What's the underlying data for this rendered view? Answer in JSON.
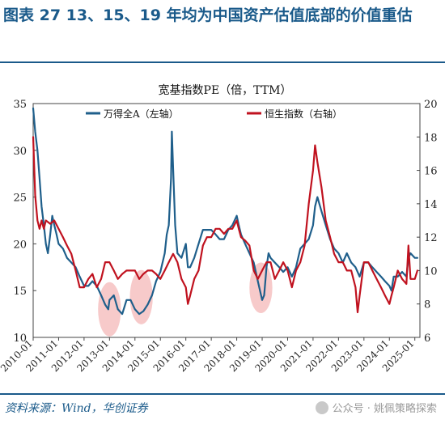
{
  "header": {
    "title": "图表 27    13、15、19 年均为中国资产估值底部的价值重估"
  },
  "footer": {
    "source": "资料来源：Wind，华创证券",
    "watermark": "公众号 · 姚佩策略探索"
  },
  "chart_data": {
    "type": "line",
    "title": "宽基指数PE（倍，TTM）",
    "x_ticks": [
      "2010-01",
      "2011-01",
      "2012-01",
      "2013-01",
      "2014-01",
      "2015-01",
      "2016-01",
      "2017-01",
      "2018-01",
      "2019-01",
      "2020-01",
      "2021-01",
      "2022-01",
      "2023-01",
      "2024-01",
      "2025-01"
    ],
    "y_left": {
      "range": [
        10,
        35
      ],
      "ticks": [
        "10",
        "15",
        "20",
        "25",
        "30",
        "35"
      ]
    },
    "y_right": {
      "range": [
        6,
        20
      ],
      "ticks": [
        "6",
        "8",
        "10",
        "12",
        "14",
        "16",
        "18",
        "20"
      ]
    },
    "legend_placement": "top",
    "colors": {
      "series_left": "#1f5f8b",
      "series_right": "#c0121f",
      "highlight": "#f4b8b8",
      "title": "#1a5a8a"
    },
    "highlights": [
      {
        "x_center": 2013.0,
        "y_center": 13.0,
        "y_half": 2.9,
        "x_half": 0.45
      },
      {
        "x_center": 2014.25,
        "y_center": 14.3,
        "y_half": 2.9,
        "x_half": 0.45
      },
      {
        "x_center": 2018.95,
        "y_center": 15.3,
        "y_half": 2.7,
        "x_half": 0.45
      }
    ],
    "series": [
      {
        "name": "万得全A（左轴）",
        "axis": "left",
        "x": [
          2010.0,
          2010.08,
          2010.17,
          2010.25,
          2010.33,
          2010.42,
          2010.5,
          2010.58,
          2010.67,
          2010.75,
          2010.83,
          2010.92,
          2011.0,
          2011.17,
          2011.33,
          2011.5,
          2011.67,
          2011.83,
          2012.0,
          2012.17,
          2012.33,
          2012.5,
          2012.67,
          2012.83,
          2012.95,
          2013.0,
          2013.17,
          2013.33,
          2013.5,
          2013.67,
          2013.83,
          2014.0,
          2014.17,
          2014.33,
          2014.5,
          2014.67,
          2014.83,
          2015.0,
          2015.17,
          2015.25,
          2015.33,
          2015.42,
          2015.45,
          2015.5,
          2015.58,
          2015.67,
          2015.83,
          2016.0,
          2016.08,
          2016.17,
          2016.33,
          2016.5,
          2016.67,
          2016.83,
          2017.0,
          2017.17,
          2017.33,
          2017.5,
          2017.67,
          2017.83,
          2018.0,
          2018.08,
          2018.17,
          2018.33,
          2018.5,
          2018.67,
          2018.83,
          2019.0,
          2019.08,
          2019.17,
          2019.25,
          2019.33,
          2019.5,
          2019.67,
          2019.83,
          2020.0,
          2020.17,
          2020.33,
          2020.5,
          2020.67,
          2020.83,
          2021.0,
          2021.08,
          2021.17,
          2021.33,
          2021.5,
          2021.67,
          2021.83,
          2022.0,
          2022.17,
          2022.33,
          2022.5,
          2022.67,
          2022.83,
          2023.0,
          2023.17,
          2023.33,
          2023.5,
          2023.67,
          2023.83,
          2024.0,
          2024.08,
          2024.17,
          2024.33,
          2024.5,
          2024.67,
          2024.75,
          2024.83,
          2025.0,
          2025.1
        ],
        "y": [
          34.5,
          32,
          30,
          27,
          24,
          22,
          20,
          19,
          21,
          23,
          22,
          21,
          20,
          19.5,
          18.5,
          18,
          17.5,
          16.5,
          15.5,
          15.5,
          16,
          15.5,
          14.5,
          13.5,
          13,
          14,
          14.5,
          13,
          12.5,
          14,
          14,
          13,
          12.5,
          12.8,
          13.5,
          14.5,
          16,
          17,
          19,
          21,
          22,
          27,
          32,
          28,
          22,
          19,
          18.5,
          20,
          17.5,
          17.5,
          18.5,
          20,
          21.5,
          21.5,
          21.5,
          21,
          20.5,
          20.5,
          21.5,
          22,
          23,
          22,
          21,
          20,
          19,
          18,
          16,
          14,
          14.5,
          17.5,
          19,
          18.5,
          18,
          17.5,
          17,
          17.5,
          16.5,
          17.5,
          19.5,
          20,
          20.5,
          22,
          24,
          25,
          23.5,
          22,
          20.5,
          19.5,
          19,
          18,
          19,
          18,
          17.5,
          16.5,
          18,
          18,
          17.5,
          17,
          16.5,
          16,
          15.5,
          15,
          16.5,
          16.5,
          17,
          16.5,
          18.5,
          19,
          18.5,
          18.5
        ]
      },
      {
        "name": "恒生指数（右轴）",
        "axis": "right",
        "x": [
          2010.0,
          2010.08,
          2010.17,
          2010.25,
          2010.33,
          2010.42,
          2010.5,
          2010.67,
          2010.83,
          2011.0,
          2011.17,
          2011.33,
          2011.5,
          2011.67,
          2011.83,
          2012.0,
          2012.17,
          2012.33,
          2012.5,
          2012.67,
          2012.83,
          2013.0,
          2013.17,
          2013.33,
          2013.5,
          2013.67,
          2013.83,
          2014.0,
          2014.17,
          2014.33,
          2014.5,
          2014.67,
          2014.83,
          2015.0,
          2015.17,
          2015.33,
          2015.5,
          2015.67,
          2015.83,
          2016.0,
          2016.08,
          2016.17,
          2016.33,
          2016.5,
          2016.67,
          2016.83,
          2017.0,
          2017.17,
          2017.33,
          2017.5,
          2017.67,
          2017.83,
          2018.0,
          2018.08,
          2018.17,
          2018.33,
          2018.5,
          2018.67,
          2018.83,
          2019.0,
          2019.17,
          2019.33,
          2019.5,
          2019.67,
          2019.83,
          2020.0,
          2020.17,
          2020.33,
          2020.5,
          2020.67,
          2020.83,
          2021.0,
          2021.08,
          2021.17,
          2021.33,
          2021.5,
          2021.67,
          2021.83,
          2022.0,
          2022.17,
          2022.33,
          2022.5,
          2022.67,
          2022.75,
          2022.83,
          2023.0,
          2023.17,
          2023.33,
          2023.5,
          2023.67,
          2023.83,
          2024.0,
          2024.08,
          2024.17,
          2024.33,
          2024.5,
          2024.67,
          2024.75,
          2024.83,
          2025.0,
          2025.1
        ],
        "y": [
          18,
          14.5,
          13,
          12.5,
          13,
          12.5,
          13,
          12.8,
          13,
          12.5,
          12,
          11.5,
          11,
          10,
          9,
          9,
          9.5,
          9.8,
          9,
          9.5,
          10.5,
          10.5,
          10,
          9.5,
          9.8,
          10,
          10,
          10,
          9.5,
          9.8,
          10,
          10,
          9.8,
          9.5,
          10,
          10.5,
          11,
          10.5,
          9.5,
          9,
          8,
          8.5,
          9.5,
          10,
          11.5,
          12,
          12,
          12.5,
          12.5,
          12.2,
          12.5,
          12.5,
          13,
          12.5,
          12,
          11.8,
          11.5,
          10,
          9.5,
          10,
          10.5,
          10.5,
          9.5,
          10,
          10.5,
          10,
          9,
          10,
          10.5,
          11.5,
          14,
          16,
          17.5,
          16.5,
          15,
          13,
          12,
          11,
          10.5,
          10.5,
          10,
          10,
          9,
          7.5,
          8.5,
          10.5,
          10.5,
          10,
          9.5,
          9,
          8.5,
          8,
          8.5,
          9,
          10,
          9.5,
          9.2,
          11.5,
          9.5,
          9.5,
          10
        ]
      }
    ]
  }
}
